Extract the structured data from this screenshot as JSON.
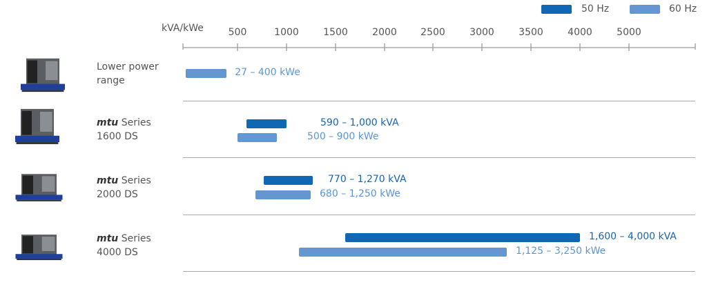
{
  "chart_data": {
    "type": "bar",
    "subtype": "range",
    "xlabel": "kVA/kWe",
    "tick_values": [
      500,
      1000,
      1500,
      2000,
      2500,
      3000,
      3500,
      4000,
      5000
    ],
    "tick_labels": [
      "500",
      "1000",
      "1500",
      "2000",
      "2500",
      "3000",
      "3500",
      "4000",
      "5000"
    ],
    "legend": [
      {
        "name": "50 Hz",
        "color": "#1068b5"
      },
      {
        "name": "60 Hz",
        "color": "#6497d2"
      }
    ],
    "legend_position": "top-right",
    "rows": [
      {
        "brand": "",
        "name": "Lower power range",
        "name_line1": "Lower power",
        "name_line2": "range",
        "bars": [
          {
            "series": "60 Hz",
            "min": 27,
            "max": 400,
            "label": "27 – 400 kWe"
          }
        ]
      },
      {
        "brand": "mtu",
        "name_line1": " Series",
        "name_line2": "1600 DS",
        "bars": [
          {
            "series": "50 Hz",
            "min": 590,
            "max": 1000,
            "label": "590 – 1,000 kVA"
          },
          {
            "series": "60 Hz",
            "min": 500,
            "max": 900,
            "label": "500 – 900 kWe"
          }
        ]
      },
      {
        "brand": "mtu",
        "name_line1": " Series",
        "name_line2": "2000 DS",
        "bars": [
          {
            "series": "50 Hz",
            "min": 770,
            "max": 1270,
            "label": "770 – 1,270 kVA"
          },
          {
            "series": "60 Hz",
            "min": 680,
            "max": 1250,
            "label": "680 – 1,250 kWe"
          }
        ]
      },
      {
        "brand": "mtu",
        "name_line1": " Series",
        "name_line2": "4000 DS",
        "bars": [
          {
            "series": "50 Hz",
            "min": 1600,
            "max": 4000,
            "label": "1,600 – 4,000 kVA"
          },
          {
            "series": "60 Hz",
            "min": 1125,
            "max": 3250,
            "label": "1,125 – 3,250 kWe"
          }
        ]
      }
    ]
  },
  "colors": {
    "text50": "#1565b0",
    "text60": "#5b95d6"
  }
}
